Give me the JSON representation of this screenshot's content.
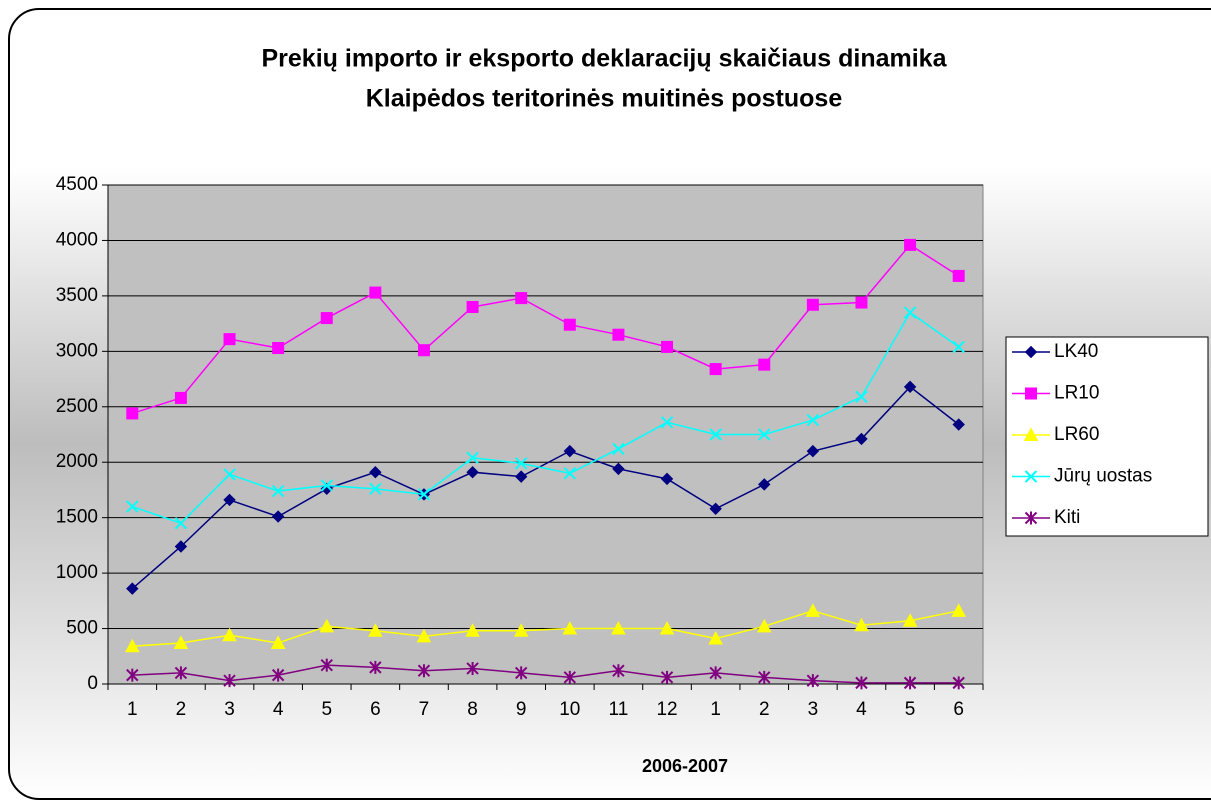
{
  "chart_data": {
    "type": "line",
    "title": [
      "Prekių importo ir eksporto deklaracijų skaičiaus dinamika",
      "Klaipėdos teritorinės muitinės postuose"
    ],
    "x_label": "2006-2007",
    "categories": [
      "1",
      "2",
      "3",
      "4",
      "5",
      "6",
      "7",
      "8",
      "9",
      "10",
      "11",
      "12",
      "1",
      "2",
      "3",
      "4",
      "5",
      "6"
    ],
    "series": [
      {
        "name": "LK40",
        "color": "#000080",
        "marker": "diamond",
        "values": [
          860,
          1240,
          1660,
          1510,
          1760,
          1910,
          1710,
          1910,
          1870,
          2100,
          1940,
          1850,
          1580,
          1800,
          2100,
          2210,
          2680,
          2340
        ]
      },
      {
        "name": "LR10",
        "color": "#ff00ff",
        "marker": "square",
        "values": [
          2440,
          2580,
          3110,
          3030,
          3300,
          3530,
          3010,
          3400,
          3480,
          3240,
          3150,
          3040,
          2840,
          2880,
          3420,
          3440,
          3960,
          3680
        ]
      },
      {
        "name": "LR60",
        "color": "#ffff00",
        "marker": "triangle",
        "values": [
          340,
          370,
          440,
          370,
          520,
          480,
          430,
          480,
          480,
          500,
          500,
          500,
          410,
          520,
          660,
          530,
          570,
          660
        ]
      },
      {
        "name": "Jūrų uostas",
        "color": "#00ffff",
        "marker": "x",
        "values": [
          1600,
          1450,
          1890,
          1740,
          1790,
          1760,
          1710,
          2040,
          1990,
          1900,
          2120,
          2360,
          2250,
          2250,
          2380,
          2590,
          3350,
          3040
        ]
      },
      {
        "name": "Kiti",
        "color": "#800080",
        "marker": "star",
        "values": [
          80,
          100,
          30,
          80,
          170,
          150,
          120,
          140,
          100,
          60,
          120,
          60,
          100,
          60,
          30,
          10,
          10,
          10
        ]
      }
    ],
    "ylim": [
      0,
      4500
    ],
    "yticks": [
      0,
      500,
      1000,
      1500,
      2000,
      2500,
      3000,
      3500,
      4000,
      4500
    ],
    "grid": true,
    "legend": "right"
  }
}
